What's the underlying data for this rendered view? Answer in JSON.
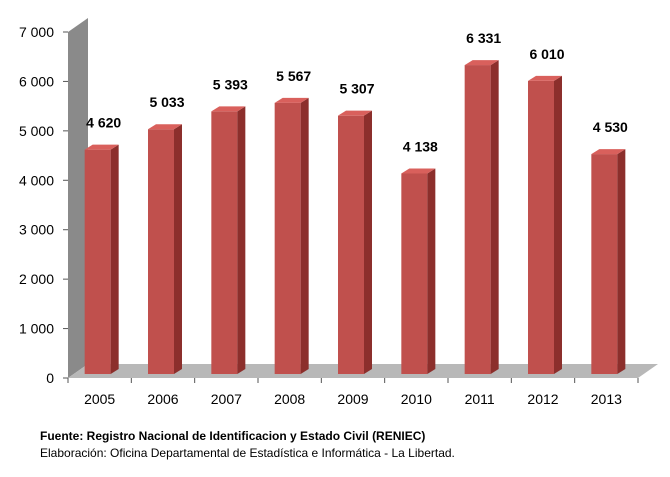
{
  "chart_data": {
    "type": "bar",
    "title": "",
    "xlabel": "",
    "ylabel": "",
    "categories": [
      "2005",
      "2006",
      "2007",
      "2008",
      "2009",
      "2010",
      "2011",
      "2012",
      "2013"
    ],
    "values": [
      4620,
      5033,
      5393,
      5567,
      5307,
      4138,
      6331,
      6010,
      4530
    ],
    "value_labels": [
      "4 620",
      "5 033",
      "5 393",
      "5 567",
      "5 307",
      "4 138",
      "6 331",
      "6 010",
      "4 530"
    ],
    "ylim": [
      0,
      7000
    ],
    "yticks": [
      0,
      1000,
      2000,
      3000,
      4000,
      5000,
      6000,
      7000
    ],
    "ytick_labels": [
      "0",
      "1 000",
      "2 000",
      "3 000",
      "4 000",
      "5 000",
      "6 000",
      "7 000"
    ],
    "grid": false,
    "legend": "none",
    "style": "3d",
    "colors": {
      "bar_front": "#c0504d",
      "bar_side": "#8c2f2c",
      "bar_top": "#d9605c",
      "wall": "#8a8a8a",
      "floor": "#b8b8b8"
    }
  },
  "footer": {
    "source": "Fuente: Registro Nacional de Identificacion y Estado Civil (RENIEC)",
    "credit": "Elaboración: Oficina Departamental de Estadística e Informática - La Libertad."
  }
}
